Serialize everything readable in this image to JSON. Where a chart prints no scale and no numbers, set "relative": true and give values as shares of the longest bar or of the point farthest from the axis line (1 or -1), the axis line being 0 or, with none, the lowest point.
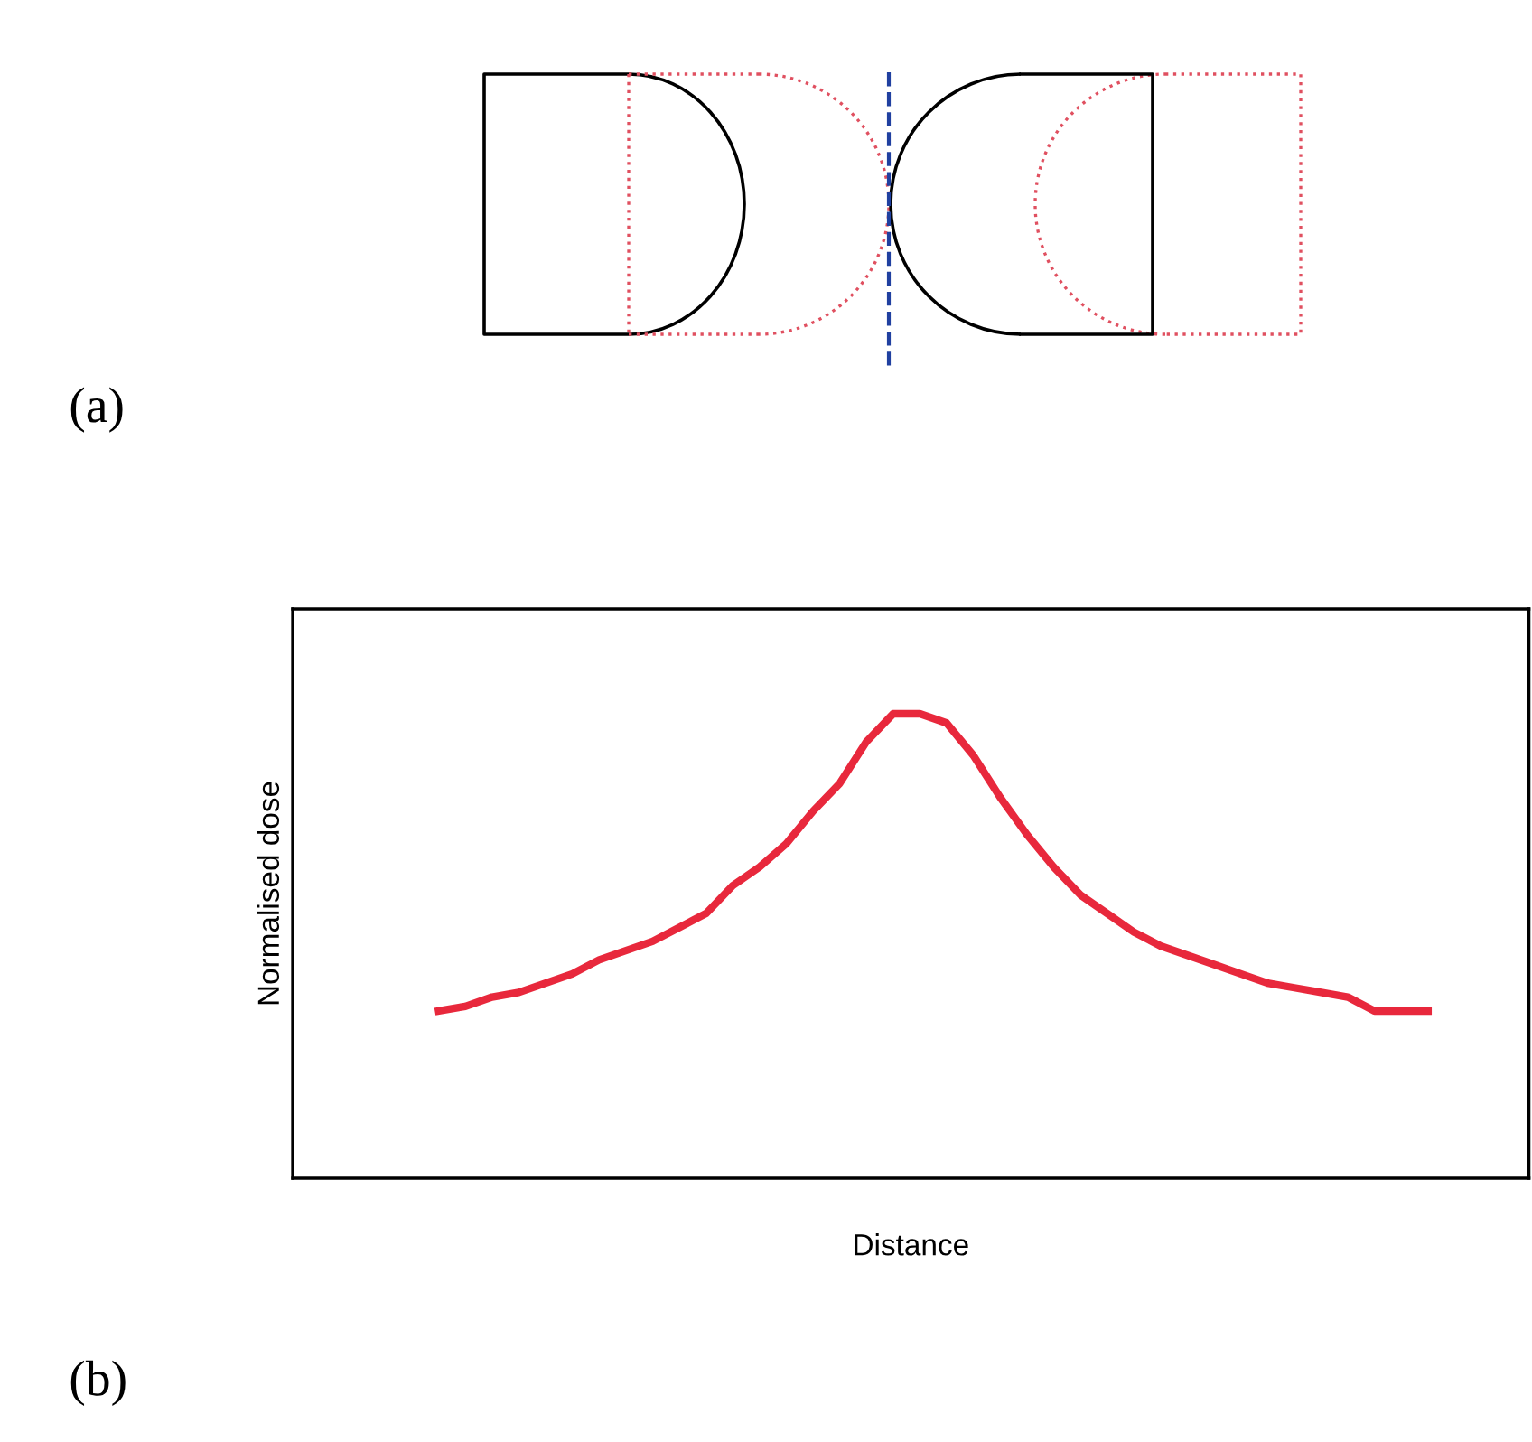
{
  "chart_data": {
    "type": "line",
    "relative": true,
    "xlabel": "Distance",
    "ylabel": "Normalised dose",
    "annotations": [
      "(a)",
      "(b)"
    ],
    "categories": [
      null,
      null,
      null,
      null,
      null,
      null,
      null,
      null,
      null,
      null,
      null,
      null,
      null,
      null,
      null,
      null,
      null,
      null,
      null,
      null,
      null,
      null,
      null,
      null,
      null,
      null,
      null,
      null,
      null,
      null,
      null,
      null,
      null,
      null,
      null,
      null,
      null,
      null
    ],
    "series": [
      {
        "color": "#e8283c",
        "values": [
          0.36,
          0.37,
          0.39,
          0.4,
          0.42,
          0.44,
          0.47,
          0.49,
          0.51,
          0.54,
          0.57,
          0.63,
          0.67,
          0.72,
          0.79,
          0.85,
          0.94,
          1,
          1,
          0.98,
          0.91,
          0.82,
          0.74,
          0.67,
          0.61,
          0.57,
          0.53,
          0.5,
          0.48,
          0.46,
          0.44,
          0.42,
          0.41,
          0.4,
          0.39,
          0.36,
          0.36,
          0.36
        ]
      }
    ],
    "grid": false,
    "legend": false,
    "tick_labels": false,
    "marker": "none",
    "line_style": "solid"
  }
}
